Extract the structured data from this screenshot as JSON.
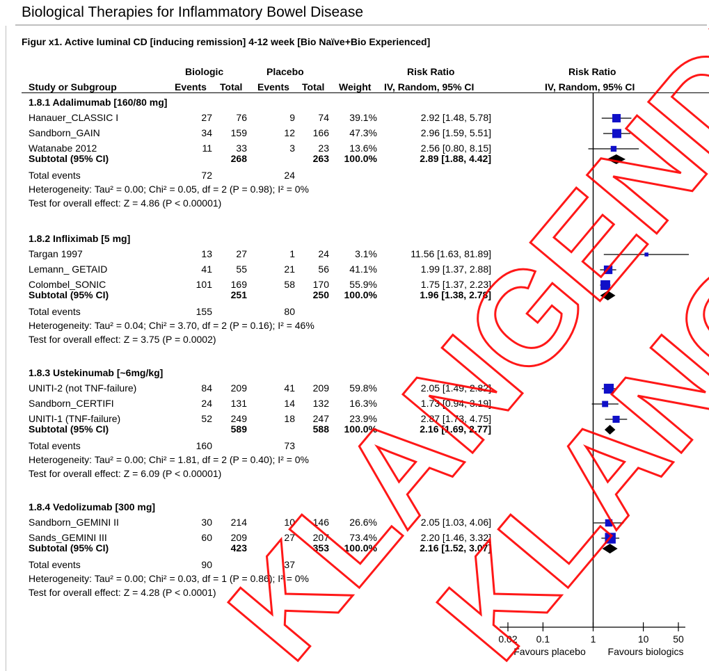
{
  "page": {
    "title": "Biological Therapies for Inflammatory Bowel Disease",
    "figure_caption": "Figur x1. Active luminal CD [inducing remission] 4-12 week [Bio Naïve+Bio Experienced]",
    "watermark": "KLANGENDR"
  },
  "header": {
    "group1": "Biologic",
    "group2": "Placebo",
    "study": "Study or Subgroup",
    "events1": "Events",
    "total1": "Total",
    "events2": "Events",
    "total2": "Total",
    "weight": "Weight",
    "rr_title": "Risk Ratio",
    "rr_method": "IV, Random, 95% CI",
    "plot_title": "Risk Ratio",
    "plot_method": "IV, Random, 95% CI"
  },
  "chart_data": {
    "type": "forest",
    "x_scale": "log",
    "xlim": [
      0.02,
      50
    ],
    "ticks": [
      "0.02",
      "0.1",
      "1",
      "10",
      "50"
    ],
    "xlabel_left": "Favours placebo",
    "xlabel_right": "Favours biologics",
    "groups": [
      {
        "label": "1.8.1 Adalimumab [160/80 mg]",
        "studies": [
          {
            "name": "Hanauer_CLASSIC I",
            "e1": "27",
            "t1": "76",
            "e2": "9",
            "t2": "74",
            "weight": "39.1%",
            "ci_text": "2.92 [1.48, 5.78]",
            "rr": 2.92,
            "lo": 1.48,
            "hi": 5.78
          },
          {
            "name": "Sandborn_GAIN",
            "e1": "34",
            "t1": "159",
            "e2": "12",
            "t2": "166",
            "weight": "47.3%",
            "ci_text": "2.96 [1.59, 5.51]",
            "rr": 2.96,
            "lo": 1.59,
            "hi": 5.51
          },
          {
            "name": "Watanabe 2012",
            "e1": "11",
            "t1": "33",
            "e2": "3",
            "t2": "23",
            "weight": "13.6%",
            "ci_text": "2.56 [0.80, 8.15]",
            "rr": 2.56,
            "lo": 0.8,
            "hi": 8.15
          }
        ],
        "subtotal": {
          "label": "Subtotal (95% CI)",
          "t1": "268",
          "t2": "263",
          "weight": "100.0%",
          "ci_text": "2.89 [1.88, 4.42]",
          "rr": 2.89,
          "lo": 1.88,
          "hi": 4.42
        },
        "total_events": {
          "label": "Total events",
          "e1": "72",
          "e2": "24"
        },
        "heterogeneity": "Heterogeneity: Tau² = 0.00; Chi² = 0.05, df = 2 (P = 0.98); I² = 0%",
        "overall": "Test for overall effect: Z = 4.86 (P < 0.00001)"
      },
      {
        "label": "1.8.2 Infliximab [5 mg]",
        "studies": [
          {
            "name": "Targan 1997",
            "e1": "13",
            "t1": "27",
            "e2": "1",
            "t2": "24",
            "weight": "3.1%",
            "ci_text": "11.56 [1.63, 81.89]",
            "rr": 11.56,
            "lo": 1.63,
            "hi": 81.89
          },
          {
            "name": "Lemann_ GETAID",
            "e1": "41",
            "t1": "55",
            "e2": "21",
            "t2": "56",
            "weight": "41.1%",
            "ci_text": "1.99 [1.37, 2.88]",
            "rr": 1.99,
            "lo": 1.37,
            "hi": 2.88
          },
          {
            "name": "Colombel_SONIC",
            "e1": "101",
            "t1": "169",
            "e2": "58",
            "t2": "170",
            "weight": "55.9%",
            "ci_text": "1.75 [1.37, 2.23]",
            "rr": 1.75,
            "lo": 1.37,
            "hi": 2.23
          }
        ],
        "subtotal": {
          "label": "Subtotal (95% CI)",
          "t1": "251",
          "t2": "250",
          "weight": "100.0%",
          "ci_text": "1.96 [1.38, 2.78]",
          "rr": 1.96,
          "lo": 1.38,
          "hi": 2.78
        },
        "total_events": {
          "label": "Total events",
          "e1": "155",
          "e2": "80"
        },
        "heterogeneity": "Heterogeneity: Tau² = 0.04; Chi² = 3.70, df = 2 (P = 0.16); I² = 46%",
        "overall": "Test for overall effect: Z = 3.75 (P = 0.0002)"
      },
      {
        "label": "1.8.3 Ustekinumab [~6mg/kg]",
        "studies": [
          {
            "name": "UNITI-2  (not TNF-failure)",
            "e1": "84",
            "t1": "209",
            "e2": "41",
            "t2": "209",
            "weight": "59.8%",
            "ci_text": "2.05 [1.49, 2.82]",
            "rr": 2.05,
            "lo": 1.49,
            "hi": 2.82
          },
          {
            "name": "Sandborn_CERTIFI",
            "e1": "24",
            "t1": "131",
            "e2": "14",
            "t2": "132",
            "weight": "16.3%",
            "ci_text": "1.73 [0.94, 3.19]",
            "rr": 1.73,
            "lo": 0.94,
            "hi": 3.19
          },
          {
            "name": "UNITI-1 (TNF-failure)",
            "e1": "52",
            "t1": "249",
            "e2": "18",
            "t2": "247",
            "weight": "23.9%",
            "ci_text": "2.87 [1.73, 4.75]",
            "rr": 2.87,
            "lo": 1.73,
            "hi": 4.75
          }
        ],
        "subtotal": {
          "label": "Subtotal (95% CI)",
          "t1": "589",
          "t2": "588",
          "weight": "100.0%",
          "ci_text": "2.16 [1.69, 2.77]",
          "rr": 2.16,
          "lo": 1.69,
          "hi": 2.77
        },
        "total_events": {
          "label": "Total events",
          "e1": "160",
          "e2": "73"
        },
        "heterogeneity": "Heterogeneity: Tau² = 0.00; Chi² = 1.81, df = 2 (P = 0.40); I² = 0%",
        "overall": "Test for overall effect: Z = 6.09 (P < 0.00001)"
      },
      {
        "label": "1.8.4 Vedolizumab [300 mg]",
        "studies": [
          {
            "name": "Sandborn_GEMINI II",
            "e1": "30",
            "t1": "214",
            "e2": "10",
            "t2": "146",
            "weight": "26.6%",
            "ci_text": "2.05 [1.03, 4.06]",
            "rr": 2.05,
            "lo": 1.03,
            "hi": 4.06
          },
          {
            "name": "Sands_GEMINI III",
            "e1": "60",
            "t1": "209",
            "e2": "27",
            "t2": "207",
            "weight": "73.4%",
            "ci_text": "2.20 [1.46, 3.32]",
            "rr": 2.2,
            "lo": 1.46,
            "hi": 3.32
          }
        ],
        "subtotal": {
          "label": "Subtotal (95% CI)",
          "t1": "423",
          "t2": "353",
          "weight": "100.0%",
          "ci_text": "2.16 [1.52, 3.07]",
          "rr": 2.16,
          "lo": 1.52,
          "hi": 3.07
        },
        "total_events": {
          "label": "Total events",
          "e1": "90",
          "e2": "37"
        },
        "heterogeneity": "Heterogeneity: Tau² = 0.00; Chi² = 0.03, df = 1 (P = 0.86); I² = 0%",
        "overall": "Test for overall effect: Z = 4.28 (P < 0.0001)"
      }
    ]
  },
  "colors": {
    "study_marker": "#1010c8",
    "summary_diamond": "#000000",
    "watermark": "#ff0000"
  }
}
